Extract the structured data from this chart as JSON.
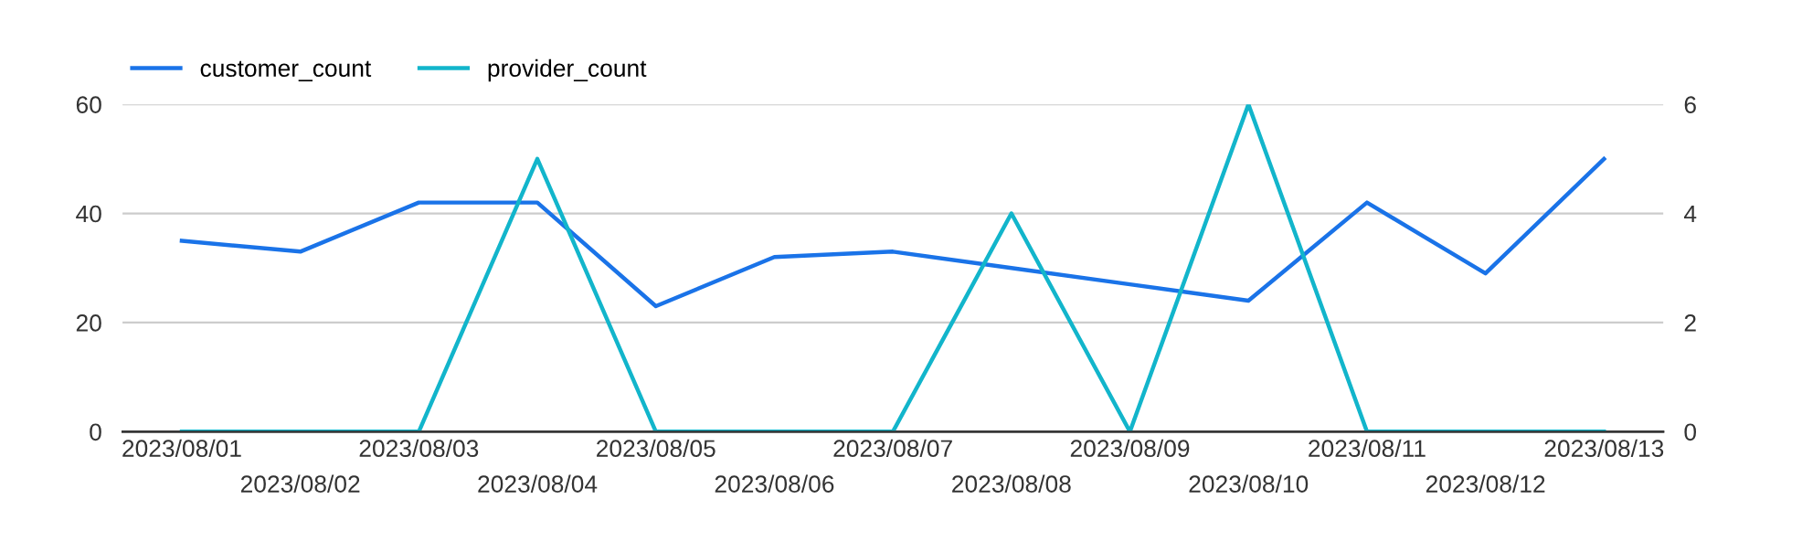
{
  "chart_data": {
    "type": "line",
    "categories": [
      "2023/08/01",
      "2023/08/02",
      "2023/08/03",
      "2023/08/04",
      "2023/08/05",
      "2023/08/06",
      "2023/08/07",
      "2023/08/08",
      "2023/08/09",
      "2023/08/10",
      "2023/08/11",
      "2023/08/12",
      "2023/08/13"
    ],
    "series": [
      {
        "name": "customer_count",
        "color": "#1a73e8",
        "values": [
          35,
          33,
          42,
          42,
          23,
          32,
          33,
          30,
          27,
          24,
          42,
          29,
          50
        ]
      },
      {
        "name": "provider_count",
        "color": "#12b5cb",
        "axis": "y2",
        "values": [
          0,
          0,
          0,
          5,
          0,
          0,
          0,
          4,
          0,
          6,
          0,
          0,
          0
        ]
      }
    ],
    "ylim": [
      0,
      60
    ],
    "yticks": [
      0,
      20,
      40,
      60
    ],
    "y2lim": [
      0,
      6
    ],
    "y2ticks": [
      0,
      2,
      4,
      6
    ],
    "grid": "y",
    "legend": "top left",
    "marker": "none",
    "line_style": "solid"
  }
}
